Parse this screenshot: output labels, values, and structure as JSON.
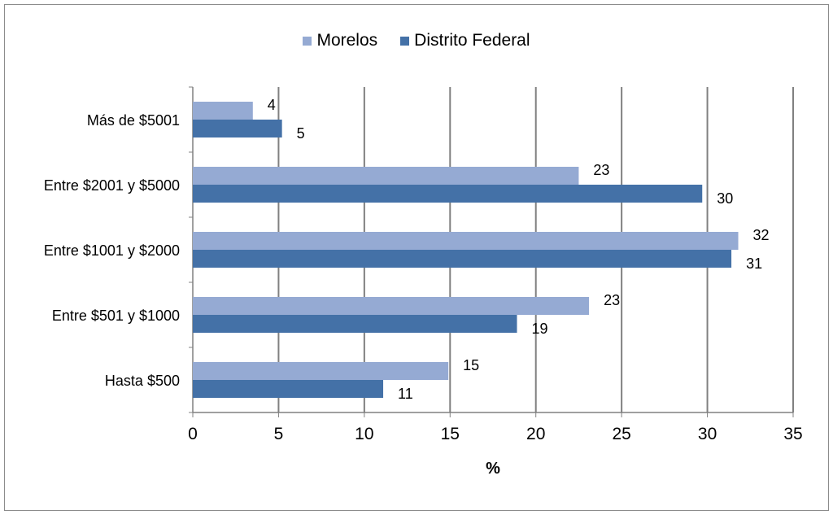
{
  "chart_data": {
    "type": "bar",
    "orientation": "horizontal",
    "categories": [
      "Hasta $500",
      "Entre $501 y $1000",
      "Entre $1001 y $2000",
      "Entre $2001 y $5000",
      "Más de $5001"
    ],
    "series": [
      {
        "name": "Morelos",
        "color": "#95aad3",
        "values": [
          15,
          23,
          32,
          23,
          4
        ],
        "bar_values": [
          14.9,
          23.1,
          31.8,
          22.5,
          3.5
        ]
      },
      {
        "name": "Distrito Federal",
        "color": "#4471a7",
        "values": [
          11,
          19,
          31,
          30,
          5
        ],
        "bar_values": [
          11.1,
          18.9,
          31.4,
          29.7,
          5.2
        ]
      }
    ],
    "xlabel": "%",
    "xlim": [
      0,
      35
    ],
    "xticks": [
      "0",
      "5",
      "10",
      "15",
      "20",
      "25",
      "30",
      "35"
    ],
    "grid": "vertical",
    "legend": "top-center"
  }
}
